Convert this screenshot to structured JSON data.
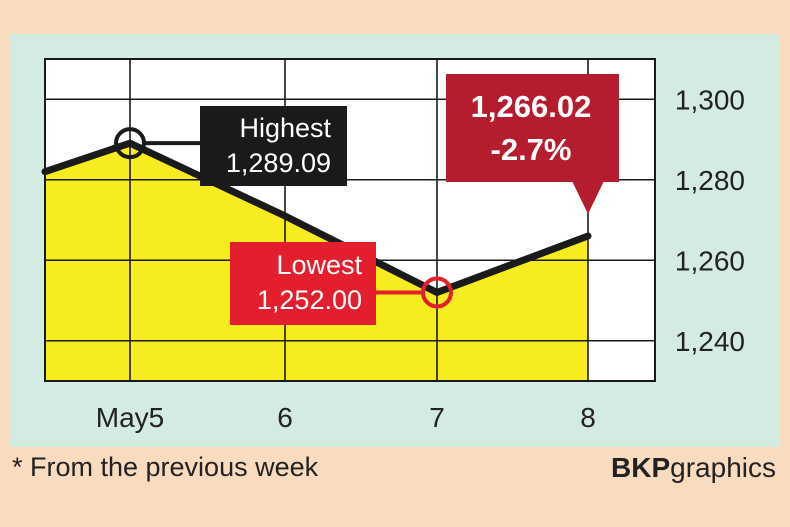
{
  "chart_data": {
    "type": "line",
    "categories": [
      "May5",
      "6",
      "7",
      "8"
    ],
    "start_value": 1282,
    "values": [
      1289.09,
      1271,
      1252.0,
      1266.02
    ],
    "ylim": [
      1230,
      1310
    ],
    "yticks": [
      1240,
      1260,
      1280,
      1300
    ],
    "ytick_labels": [
      "1,240",
      "1,260",
      "1,280",
      "1,300"
    ],
    "annotations": {
      "highest_title": "Highest",
      "highest_value": "1,289.09",
      "lowest_title": "Lowest",
      "lowest_value": "1,252.00",
      "latest_value": "1,266.02",
      "latest_change": "-2.7%"
    },
    "colors": {
      "fill": "#f7ec1f",
      "line": "#1a1a1a",
      "grid": "#1a1a1a",
      "highest_box": "#1a1a1a",
      "lowest_box": "#e31e2d",
      "latest_box": "#b51d2e"
    }
  },
  "footnote": "* From the previous week",
  "credit": {
    "bold": "BKP",
    "light": "graphics"
  }
}
